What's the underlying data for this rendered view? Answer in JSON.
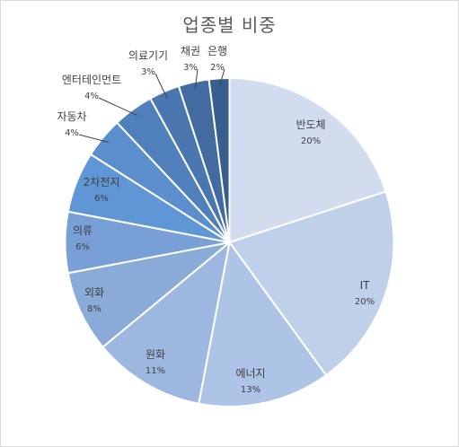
{
  "chart_data": {
    "type": "pie",
    "title": "업종별 비중",
    "start_angle_deg": 0,
    "direction": "clockwise",
    "legend": "none",
    "data_labels": "category and percent",
    "slices": [
      {
        "label": "반도체",
        "value": 20,
        "value_label": "20%",
        "color": "#d2dcef"
      },
      {
        "label": "IT",
        "value": 20,
        "value_label": "20%",
        "color": "#bfd0ea"
      },
      {
        "label": "에너지",
        "value": 13,
        "value_label": "13%",
        "color": "#aec4e6"
      },
      {
        "label": "원화",
        "value": 11,
        "value_label": "11%",
        "color": "#9cb8e0"
      },
      {
        "label": "외화",
        "value": 8,
        "value_label": "8%",
        "color": "#8aabd8"
      },
      {
        "label": "의류",
        "value": 6,
        "value_label": "6%",
        "color": "#78a0d7"
      },
      {
        "label": "2차전지",
        "value": 6,
        "value_label": "6%",
        "color": "#5f96d6"
      },
      {
        "label": "자동차",
        "value": 4,
        "value_label": "4%",
        "color": "#5a8ecc"
      },
      {
        "label": "엔터테인먼트",
        "value": 4,
        "value_label": "4%",
        "color": "#4f80bc"
      },
      {
        "label": "의료기기",
        "value": 3,
        "value_label": "3%",
        "color": "#4a77b0"
      },
      {
        "label": "채권",
        "value": 3,
        "value_label": "3%",
        "color": "#416ba1"
      },
      {
        "label": "은행",
        "value": 2,
        "value_label": "2%",
        "color": "#385e8d"
      }
    ]
  }
}
